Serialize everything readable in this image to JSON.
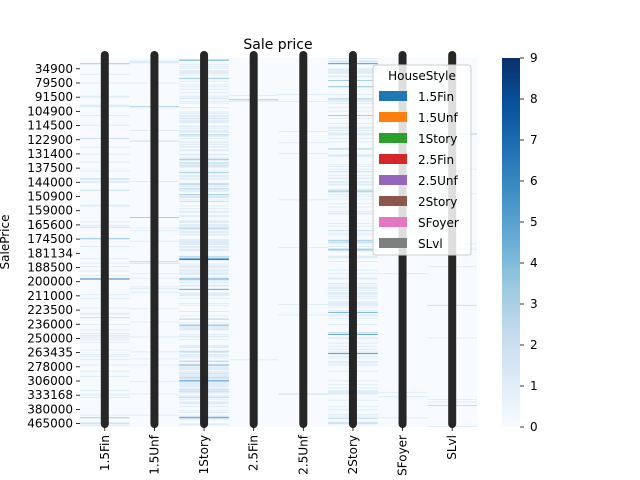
{
  "chart_data": {
    "type": "heatmap",
    "title": "Sale price",
    "xlabel": "",
    "ylabel": "SalePrice",
    "columns": [
      "1.5Fin",
      "1.5Unf",
      "1Story",
      "2.5Fin",
      "2.5Unf",
      "2Story",
      "SFoyer",
      "SLvl"
    ],
    "y_tick_labels": [
      "34900",
      "79500",
      "91500",
      "104900",
      "114500",
      "122900",
      "131400",
      "137500",
      "144000",
      "150900",
      "159000",
      "165600",
      "174500",
      "181134",
      "188500",
      "200000",
      "211000",
      "223500",
      "236000",
      "250000",
      "263435",
      "278000",
      "306000",
      "333168",
      "380000",
      "465000"
    ],
    "colorbar": {
      "min": 0,
      "max": 9,
      "ticks": [
        0,
        1,
        2,
        3,
        4,
        5,
        6,
        7,
        8,
        9
      ],
      "colormap": "Blues"
    },
    "column_density": [
      0.18,
      0.06,
      0.5,
      0.01,
      0.02,
      0.35,
      0.03,
      0.04
    ],
    "legend": {
      "title": "HouseStyle",
      "placement": "upper-right",
      "entries": [
        {
          "label": "1.5Fin",
          "color": "#1f77b4"
        },
        {
          "label": "1.5Unf",
          "color": "#ff7f0e"
        },
        {
          "label": "1Story",
          "color": "#2ca02c"
        },
        {
          "label": "2.5Fin",
          "color": "#d62728"
        },
        {
          "label": "2.5Unf",
          "color": "#9467bd"
        },
        {
          "label": "2Story",
          "color": "#8c564b"
        },
        {
          "label": "SFoyer",
          "color": "#e377c2"
        },
        {
          "label": "SLvl",
          "color": "#7f7f7f"
        }
      ]
    },
    "overlay_line_color": "#262626"
  }
}
